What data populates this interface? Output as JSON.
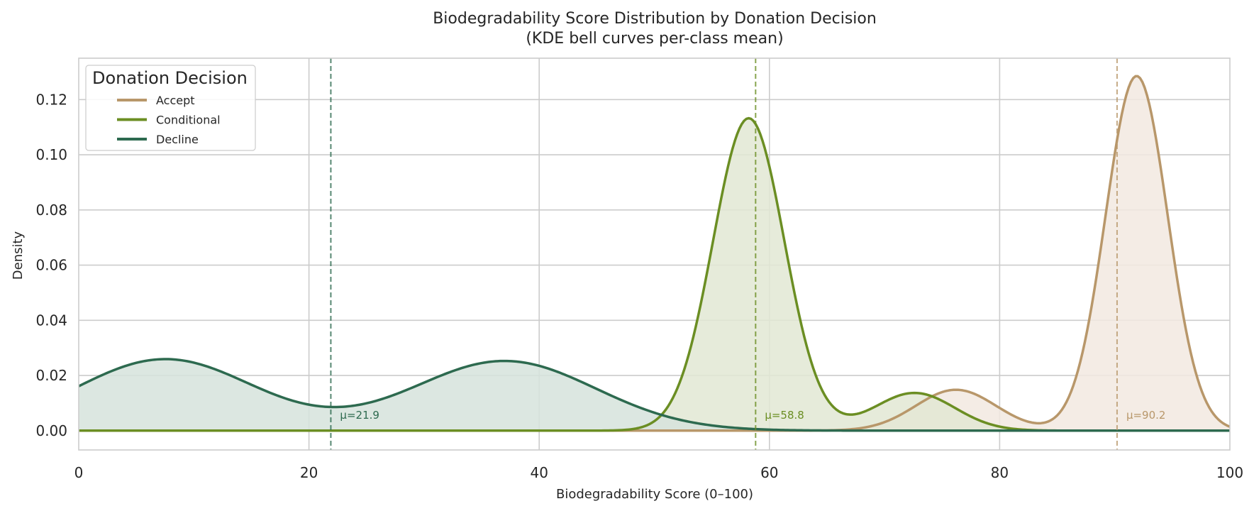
{
  "chart_data": {
    "type": "area",
    "title": "Biodegradability Score Distribution by Donation Decision",
    "subtitle": "(KDE bell curves per-class mean)",
    "xlabel": "Biodegradability Score (0–100)",
    "ylabel": "Density",
    "xlim": [
      0,
      100
    ],
    "ylim": [
      -0.007,
      0.135
    ],
    "x_ticks": [
      0,
      20,
      40,
      60,
      80,
      100
    ],
    "x_tick_labels": [
      "0",
      "20",
      "40",
      "60",
      "80",
      "100"
    ],
    "y_ticks": [
      0.0,
      0.02,
      0.04,
      0.06,
      0.08,
      0.1,
      0.12
    ],
    "y_tick_labels": [
      "0.00",
      "0.02",
      "0.04",
      "0.06",
      "0.08",
      "0.10",
      "0.12"
    ],
    "grid": true,
    "legend": {
      "title": "Donation Decision",
      "placement": "top-left"
    },
    "series": [
      {
        "name": "Accept",
        "color": "#b8976a",
        "fill": "#f2e9e1",
        "mean": 90.2,
        "mean_label": "μ=90.2",
        "components": [
          {
            "weight": 0.87,
            "mu": 91.9,
            "sigma": 2.7
          },
          {
            "weight": 0.13,
            "mu": 76.2,
            "sigma": 3.5
          }
        ]
      },
      {
        "name": "Conditional",
        "color": "#6b8e23",
        "fill": "#e2e8d3",
        "mean": 58.8,
        "mean_label": "μ=58.8",
        "components": [
          {
            "weight": 0.88,
            "mu": 58.2,
            "sigma": 3.1
          },
          {
            "weight": 0.12,
            "mu": 72.6,
            "sigma": 3.5
          }
        ]
      },
      {
        "name": "Decline",
        "color": "#2d6a4f",
        "fill": "#d6e3dc",
        "mean": 21.9,
        "mean_label": "μ=21.9",
        "components": [
          {
            "weight": 0.5,
            "mu": 7.5,
            "sigma": 7.7
          },
          {
            "weight": 0.5,
            "mu": 37.0,
            "sigma": 7.9
          }
        ]
      }
    ]
  }
}
